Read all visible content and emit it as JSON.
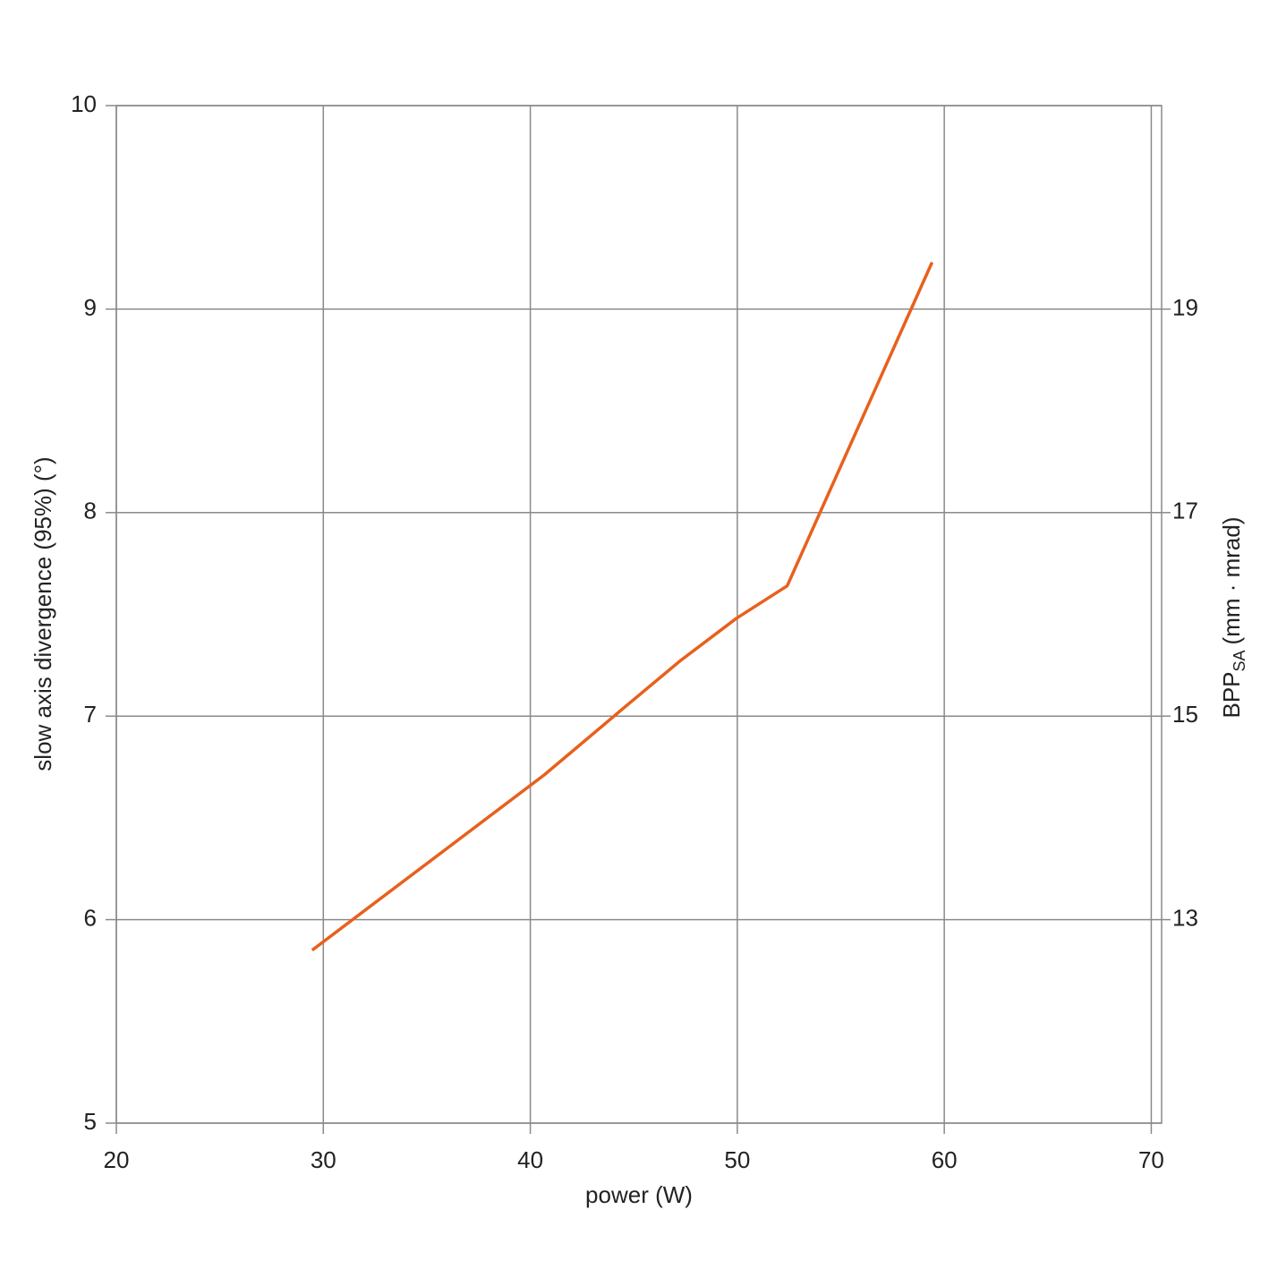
{
  "chart_data": {
    "type": "line",
    "x_label": "power (W)",
    "y_label": "slow axis divergence (95%) (°)",
    "y2_label": "BPP",
    "y2_label_sub": "SA",
    "y2_label_unit": "(mm · mrad)",
    "x": [
      29.46,
      40.66,
      44.63,
      47.22,
      49.95,
      52.41,
      59.41
    ],
    "series": [
      {
        "color": "#e8601c",
        "values": [
          5.85,
          6.71,
          7.05,
          7.27,
          7.48,
          7.64,
          9.23
        ]
      }
    ],
    "xlim": [
      20,
      70.5
    ],
    "xticks": [
      20,
      30,
      40,
      50,
      60,
      70
    ],
    "ylim": [
      5,
      10
    ],
    "yticks": [
      5,
      6,
      7,
      8,
      9,
      10
    ],
    "y2lim": [
      11,
      21
    ],
    "y2ticks": [
      13,
      15,
      17,
      19
    ],
    "grid": true
  }
}
